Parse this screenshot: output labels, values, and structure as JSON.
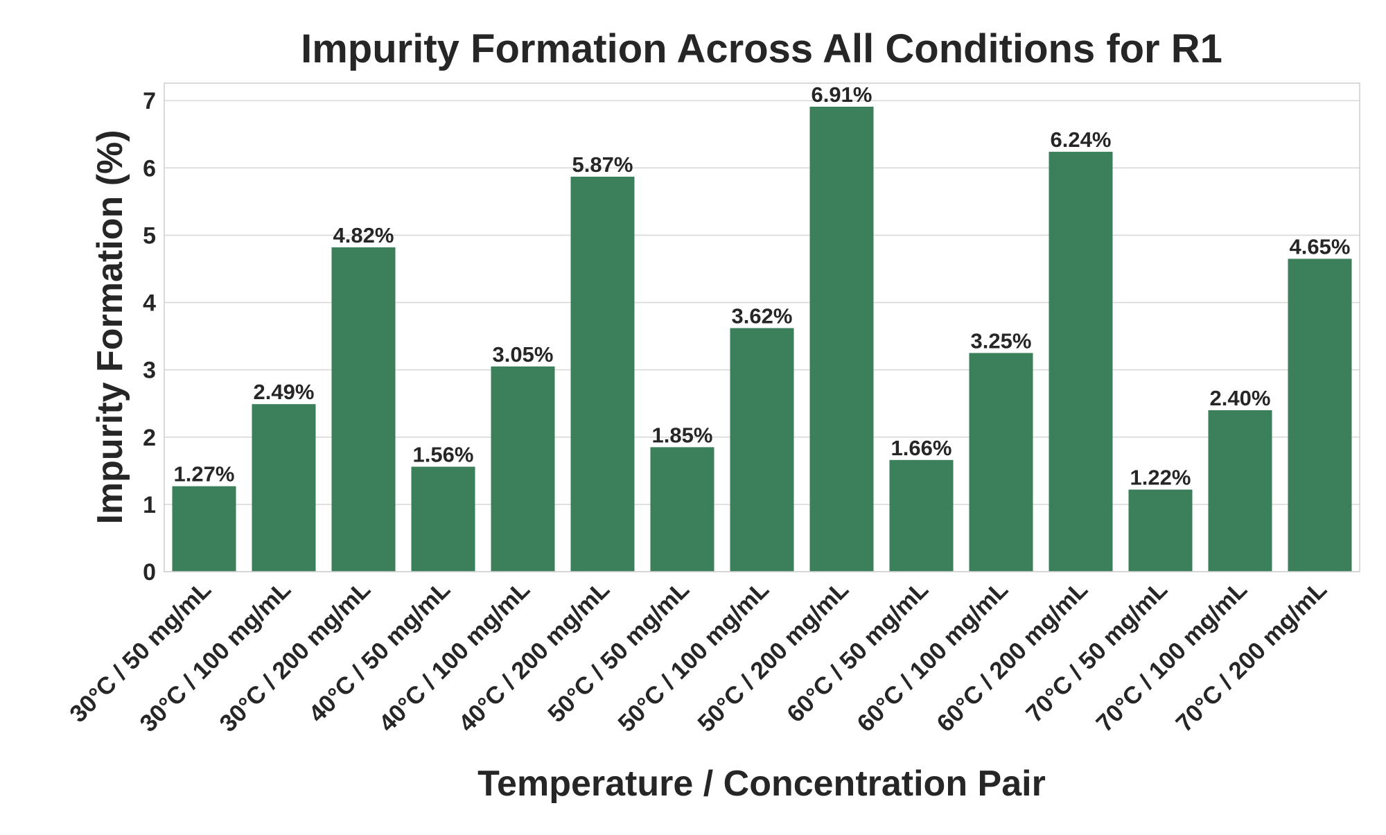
{
  "chart_data": {
    "type": "bar",
    "title": "Impurity Formation Across All Conditions for R1",
    "xlabel": "Temperature / Concentration Pair",
    "ylabel": "Impurity Formation (%)",
    "categories": [
      "30°C / 50 mg/mL",
      "30°C / 100 mg/mL",
      "30°C / 200 mg/mL",
      "40°C / 50 mg/mL",
      "40°C / 100 mg/mL",
      "40°C / 200 mg/mL",
      "50°C / 50 mg/mL",
      "50°C / 100 mg/mL",
      "50°C / 200 mg/mL",
      "60°C / 50 mg/mL",
      "60°C / 100 mg/mL",
      "60°C / 200 mg/mL",
      "70°C / 50 mg/mL",
      "70°C / 100 mg/mL",
      "70°C / 200 mg/mL"
    ],
    "values": [
      1.27,
      2.49,
      4.82,
      1.56,
      3.05,
      5.87,
      1.85,
      3.62,
      6.91,
      1.66,
      3.25,
      6.24,
      1.22,
      2.4,
      4.65
    ],
    "data_labels": [
      "1.27%",
      "2.49%",
      "4.82%",
      "1.56%",
      "3.05%",
      "5.87%",
      "1.85%",
      "3.62%",
      "6.91%",
      "1.66%",
      "3.25%",
      "6.24%",
      "1.22%",
      "2.40%",
      "4.65%"
    ],
    "yticks": [
      0,
      1,
      2,
      3,
      4,
      5,
      6,
      7
    ],
    "ylim": [
      0,
      7.26
    ],
    "grid": true,
    "bar_color": "#3b805a"
  }
}
